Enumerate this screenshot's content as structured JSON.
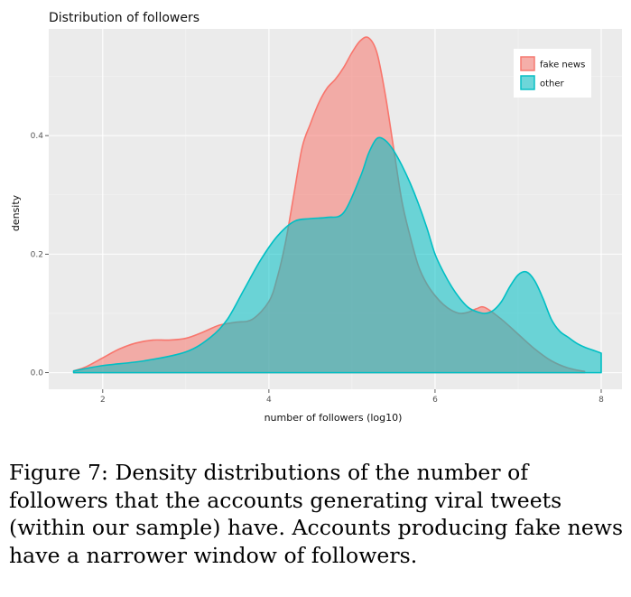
{
  "chart_data": {
    "type": "area",
    "title": "Distribution of followers",
    "xlabel": "number of followers (log10)",
    "ylabel": "density",
    "xlim": [
      1.35,
      8.25
    ],
    "ylim": [
      -0.028,
      0.58
    ],
    "xticks": [
      2,
      4,
      6,
      8
    ],
    "yticks": [
      0.0,
      0.2,
      0.4
    ],
    "ytick_labels": [
      "0.0",
      "0.2",
      "0.4"
    ],
    "grid": true,
    "legend_position": "top-right",
    "series": [
      {
        "name": "fake news",
        "fill": "#F8766D",
        "x": [
          1.65,
          1.8,
          2.0,
          2.2,
          2.4,
          2.6,
          2.8,
          3.0,
          3.2,
          3.4,
          3.6,
          3.8,
          4.0,
          4.1,
          4.2,
          4.3,
          4.4,
          4.5,
          4.6,
          4.7,
          4.8,
          4.9,
          5.0,
          5.1,
          5.2,
          5.3,
          5.4,
          5.5,
          5.6,
          5.7,
          5.8,
          5.9,
          6.0,
          6.1,
          6.2,
          6.3,
          6.4,
          6.5,
          6.6,
          6.8,
          7.0,
          7.2,
          7.4,
          7.6,
          7.8
        ],
        "y": [
          0.003,
          0.01,
          0.025,
          0.04,
          0.05,
          0.055,
          0.055,
          0.058,
          0.068,
          0.08,
          0.085,
          0.09,
          0.12,
          0.16,
          0.22,
          0.3,
          0.38,
          0.42,
          0.455,
          0.48,
          0.495,
          0.515,
          0.54,
          0.56,
          0.565,
          0.54,
          0.47,
          0.38,
          0.29,
          0.23,
          0.18,
          0.15,
          0.13,
          0.115,
          0.105,
          0.1,
          0.102,
          0.108,
          0.11,
          0.09,
          0.065,
          0.04,
          0.02,
          0.008,
          0.002
        ]
      },
      {
        "name": "other",
        "fill": "#00BFC4",
        "x": [
          1.65,
          2.0,
          2.5,
          3.0,
          3.3,
          3.5,
          3.7,
          3.9,
          4.1,
          4.3,
          4.5,
          4.7,
          4.9,
          5.1,
          5.2,
          5.3,
          5.4,
          5.5,
          5.6,
          5.7,
          5.8,
          5.9,
          6.0,
          6.1,
          6.2,
          6.3,
          6.4,
          6.5,
          6.6,
          6.7,
          6.8,
          6.9,
          7.0,
          7.1,
          7.2,
          7.3,
          7.4,
          7.5,
          7.6,
          7.7,
          7.8,
          7.9,
          8.0
        ],
        "y": [
          0.003,
          0.012,
          0.02,
          0.035,
          0.06,
          0.09,
          0.14,
          0.19,
          0.23,
          0.255,
          0.26,
          0.262,
          0.27,
          0.33,
          0.37,
          0.395,
          0.392,
          0.375,
          0.35,
          0.32,
          0.285,
          0.245,
          0.2,
          0.17,
          0.145,
          0.125,
          0.11,
          0.103,
          0.1,
          0.105,
          0.12,
          0.145,
          0.165,
          0.17,
          0.155,
          0.125,
          0.09,
          0.07,
          0.06,
          0.05,
          0.043,
          0.038,
          0.033
        ]
      }
    ]
  },
  "caption": "Figure 7: Density distributions of the number of followers that the accounts generating viral tweets (within our sample) have. Accounts producing fake news have a narrower window of followers."
}
